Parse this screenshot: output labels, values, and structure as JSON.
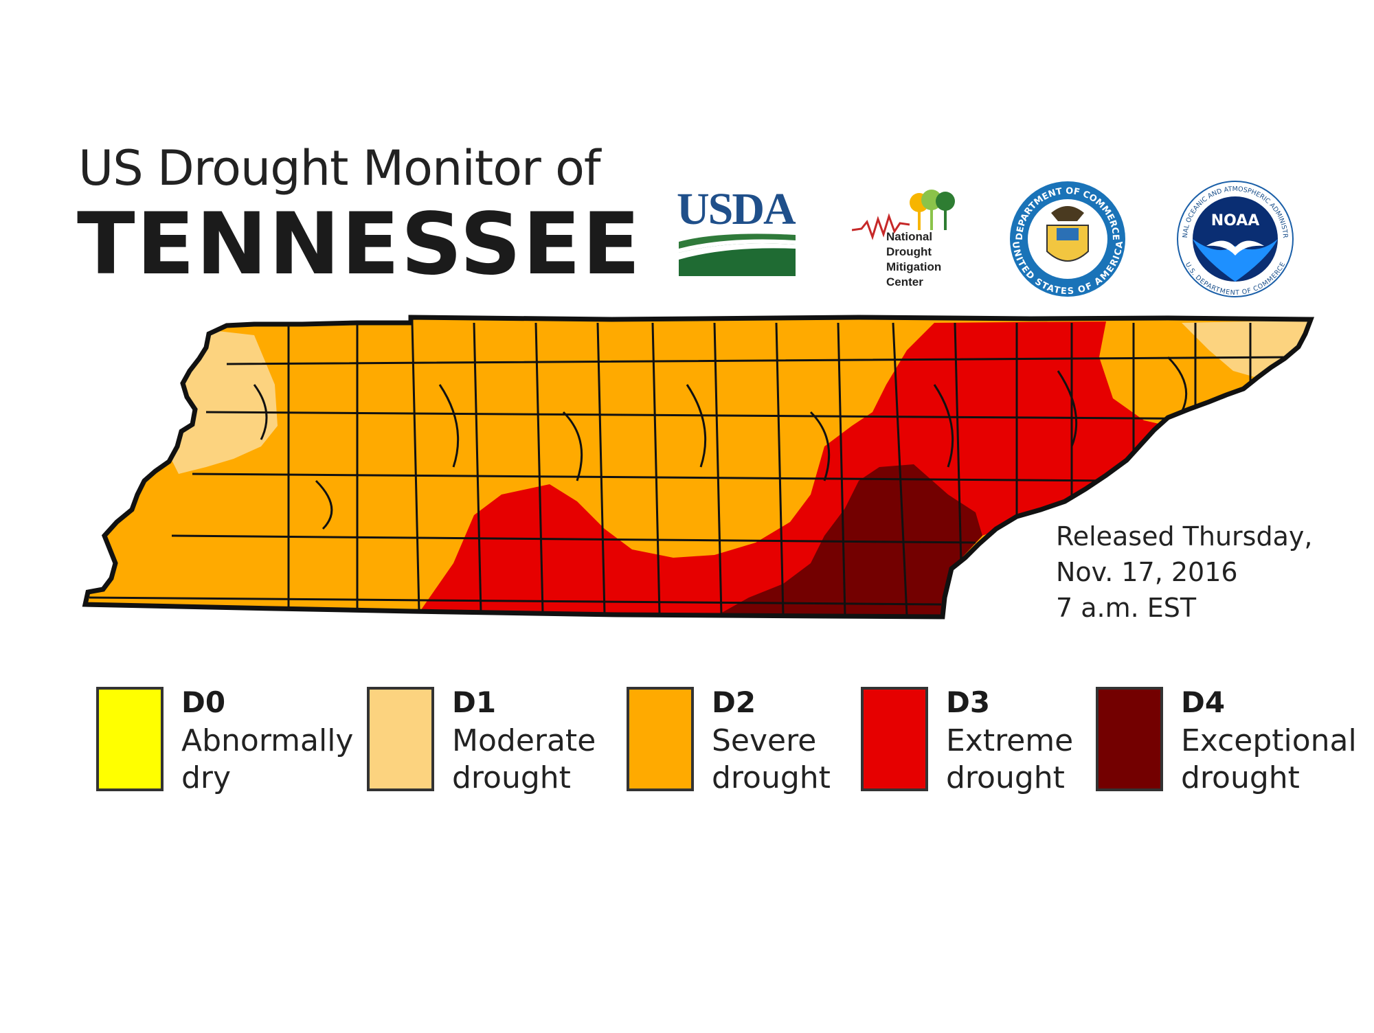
{
  "title": {
    "line1": "US Drought Monitor of",
    "line2": "TENNESSEE"
  },
  "logos": {
    "usda": "USDA",
    "ndmc_lines": [
      "National",
      "Drought",
      "Mitigation",
      "Center"
    ],
    "commerce_ring_top": "DEPARTMENT OF COMMERCE",
    "commerce_ring_bottom": "UNITED STATES OF AMERICA",
    "noaa": "NOAA",
    "noaa_ring_top": "NATIONAL OCEANIC AND ATMOSPHERIC ADMINISTRATION",
    "noaa_ring_bottom": "U.S. DEPARTMENT OF COMMERCE"
  },
  "release": {
    "line1": "Released Thursday,",
    "line2": "Nov. 17, 2016",
    "line3": "7 a.m. EST"
  },
  "legend": [
    {
      "code": "D0",
      "line1": "Abnormally",
      "line2": "dry",
      "color": "#ffff00"
    },
    {
      "code": "D1",
      "line1": "Moderate",
      "line2": "drought",
      "color": "#fcd37f"
    },
    {
      "code": "D2",
      "line1": "Severe",
      "line2": "drought",
      "color": "#ffaa00"
    },
    {
      "code": "D3",
      "line1": "Extreme",
      "line2": "drought",
      "color": "#e60000"
    },
    {
      "code": "D4",
      "line1": "Exceptional",
      "line2": "drought",
      "color": "#730000"
    }
  ],
  "map": {
    "state": "Tennessee",
    "dominant_category": "D2",
    "regions": [
      {
        "category": "D1",
        "area": "west Tennessee, near the Mississippi River"
      },
      {
        "category": "D1",
        "area": "far northeast corner"
      },
      {
        "category": "D3",
        "area": "southern Middle Tennessee and East Tennessee"
      },
      {
        "category": "D4",
        "area": "southeast Tennessee near Chattanooga"
      }
    ]
  }
}
